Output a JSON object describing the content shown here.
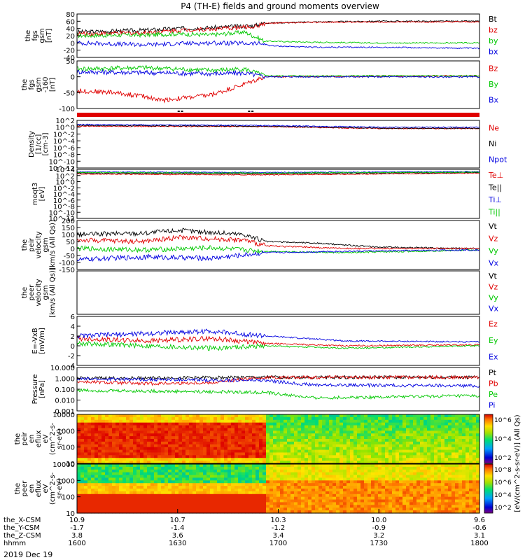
{
  "title": "P4 (TH-E) fields and ground moments overview",
  "date_label": "2019 Dec 19",
  "colors": {
    "black": "#000000",
    "red": "#e00000",
    "green": "#00c800",
    "blue": "#0000e0"
  },
  "chart_data": {
    "type": "line",
    "x_axis": {
      "row_labels": [
        "the_X-CSM",
        "the_Y-CSM",
        "the_Z-CSM",
        "hhmm"
      ],
      "ticks": [
        {
          "t": 0,
          "X": "10.9",
          "Y": "-1.7",
          "Z": "3.8",
          "hhmm": "1600"
        },
        {
          "t": 30,
          "X": "10.7",
          "Y": "-1.4",
          "Z": "3.6",
          "hhmm": "1630"
        },
        {
          "t": 60,
          "X": "10.3",
          "Y": "-1.2",
          "Z": "3.4",
          "hhmm": "1700"
        },
        {
          "t": 90,
          "X": "10.0",
          "Y": "-0.9",
          "Z": "3.2",
          "hhmm": "1730"
        },
        {
          "t": 120,
          "X": "9.6",
          "Y": "-0.6",
          "Z": "3.1",
          "hhmm": "1800"
        }
      ],
      "range_minutes": [
        0,
        120
      ]
    },
    "panels": [
      {
        "id": "fgs",
        "ylabel": [
          "the",
          "fgs",
          "gsm",
          "[nT]"
        ],
        "ylim": [
          -40,
          80
        ],
        "yticks": [
          "-40",
          "-20",
          "0",
          "20",
          "40",
          "60",
          "80"
        ],
        "series": [
          {
            "name": "Bt",
            "color": "black",
            "segments": [
              [
                0,
                30
              ],
              [
                20,
                35
              ],
              [
                30,
                40
              ],
              [
                40,
                42
              ],
              [
                53,
                48
              ],
              [
                56,
                55
              ],
              [
                70,
                58
              ],
              [
                90,
                60
              ],
              [
                120,
                60
              ]
            ]
          },
          {
            "name": "bz",
            "color": "red",
            "segments": [
              [
                0,
                25
              ],
              [
                20,
                28
              ],
              [
                30,
                35
              ],
              [
                40,
                38
              ],
              [
                53,
                45
              ],
              [
                56,
                54
              ],
              [
                70,
                57
              ],
              [
                90,
                58
              ],
              [
                120,
                58
              ]
            ]
          },
          {
            "name": "by",
            "color": "green",
            "segments": [
              [
                0,
                20
              ],
              [
                20,
                22
              ],
              [
                30,
                25
              ],
              [
                40,
                22
              ],
              [
                50,
                30
              ],
              [
                56,
                5
              ],
              [
                70,
                2
              ],
              [
                90,
                0
              ],
              [
                120,
                0
              ]
            ]
          },
          {
            "name": "bx",
            "color": "blue",
            "segments": [
              [
                0,
                0
              ],
              [
                20,
                -5
              ],
              [
                30,
                -2
              ],
              [
                40,
                0
              ],
              [
                55,
                -2
              ],
              [
                58,
                -8
              ],
              [
                70,
                -12
              ],
              [
                90,
                -12
              ],
              [
                120,
                -15
              ]
            ]
          }
        ]
      },
      {
        "id": "fgs-160",
        "ylabel": [
          "the",
          "fgs",
          "gsm",
          "-160",
          "[nT]"
        ],
        "ylim": [
          -120,
          55
        ],
        "yticks": [
          "-100",
          "-50",
          "0",
          "50"
        ],
        "series": [
          {
            "name": "Bz",
            "color": "red",
            "segments": [
              [
                0,
                -55
              ],
              [
                10,
                -60
              ],
              [
                20,
                -75
              ],
              [
                25,
                -90
              ],
              [
                40,
                -70
              ],
              [
                50,
                -30
              ],
              [
                56,
                -3
              ],
              [
                120,
                0
              ]
            ]
          },
          {
            "name": "By",
            "color": "green",
            "segments": [
              [
                0,
                25
              ],
              [
                20,
                30
              ],
              [
                30,
                25
              ],
              [
                40,
                20
              ],
              [
                50,
                25
              ],
              [
                56,
                0
              ],
              [
                120,
                0
              ]
            ]
          },
          {
            "name": "Bx",
            "color": "blue",
            "segments": [
              [
                0,
                15
              ],
              [
                20,
                12
              ],
              [
                30,
                10
              ],
              [
                40,
                8
              ],
              [
                50,
                10
              ],
              [
                56,
                -3
              ],
              [
                120,
                -4
              ]
            ]
          }
        ]
      },
      {
        "id": "density",
        "ylabel": [
          "Density",
          "[1/cc]",
          "[cm-3]"
        ],
        "scale": "log",
        "ylim_exp": [
          -12,
          2
        ],
        "yticks": [
          "10^2",
          "10^0",
          "10^-2",
          "10^-4",
          "10^-6",
          "10^-8",
          "10^-10",
          "10^-12"
        ],
        "series": [
          {
            "name": "Ne",
            "color": "red",
            "segments": [
              [
                0,
                0.3
              ],
              [
                56,
                0.2
              ],
              [
                90,
                -0.4
              ],
              [
                120,
                -0.4
              ]
            ]
          },
          {
            "name": "Ni",
            "color": "black",
            "segments": [
              [
                0,
                0.5
              ],
              [
                56,
                0.3
              ],
              [
                90,
                -0.3
              ],
              [
                120,
                -0.3
              ]
            ]
          },
          {
            "name": "Npot",
            "color": "blue",
            "segments": [
              [
                0,
                0.8
              ],
              [
                56,
                0.5
              ],
              [
                90,
                0
              ],
              [
                120,
                0
              ]
            ]
          }
        ]
      },
      {
        "id": "moqt3",
        "ylabel": [
          "moqt3",
          "[eV]"
        ],
        "scale": "log",
        "ylim_exp": [
          -12,
          4
        ],
        "yticks": [
          "10^4",
          "10^2",
          "10^0",
          "10^-2",
          "10^-4",
          "10^-6",
          "10^-8",
          "10^-10",
          "10^-12"
        ],
        "series": [
          {
            "name": "Te⊥",
            "color": "red",
            "segments": [
              [
                0,
                2.5
              ],
              [
                56,
                2.2
              ],
              [
                120,
                2.8
              ]
            ]
          },
          {
            "name": "Te||",
            "color": "black",
            "segments": [
              [
                0,
                2.8
              ],
              [
                56,
                2.6
              ],
              [
                120,
                3.0
              ]
            ]
          },
          {
            "name": "Ti⊥",
            "color": "blue",
            "segments": [
              [
                0,
                3.2
              ],
              [
                56,
                3.0
              ],
              [
                120,
                3.3
              ]
            ]
          },
          {
            "name": "Ti||",
            "color": "green",
            "segments": [
              [
                0,
                3.0
              ],
              [
                56,
                2.8
              ],
              [
                120,
                3.1
              ]
            ]
          }
        ]
      },
      {
        "id": "peir-velocity",
        "ylabel": [
          "the",
          "peir",
          "velocity",
          "gsm",
          "[km/s (All Qs)]"
        ],
        "ylim": [
          -150,
          200
        ],
        "yticks": [
          "-150",
          "-100",
          "-50",
          "0",
          "50",
          "100",
          "150",
          "200"
        ],
        "series": [
          {
            "name": "Vt",
            "color": "black",
            "segments": [
              [
                0,
                100
              ],
              [
                20,
                110
              ],
              [
                30,
                130
              ],
              [
                50,
                100
              ],
              [
                56,
                50
              ],
              [
                70,
                40
              ],
              [
                90,
                10
              ],
              [
                120,
                0
              ]
            ]
          },
          {
            "name": "Vz",
            "color": "red",
            "segments": [
              [
                0,
                60
              ],
              [
                20,
                50
              ],
              [
                30,
                80
              ],
              [
                50,
                60
              ],
              [
                56,
                20
              ],
              [
                80,
                0
              ],
              [
                120,
                0
              ]
            ]
          },
          {
            "name": "Vy",
            "color": "green",
            "segments": [
              [
                0,
                0
              ],
              [
                20,
                -10
              ],
              [
                40,
                5
              ],
              [
                56,
                -20
              ],
              [
                80,
                -30
              ],
              [
                120,
                -10
              ]
            ]
          },
          {
            "name": "Vx",
            "color": "blue",
            "segments": [
              [
                0,
                -80
              ],
              [
                20,
                -60
              ],
              [
                40,
                -70
              ],
              [
                56,
                -30
              ],
              [
                80,
                -20
              ],
              [
                120,
                -10
              ]
            ]
          }
        ]
      },
      {
        "id": "peer-velocity",
        "ylabel": [
          "the",
          "peer",
          "velocity",
          "gsm",
          "[km/s (All Qs)]"
        ],
        "ylim": [
          -1,
          1
        ],
        "yticks": [],
        "series": [
          {
            "name": "Vt",
            "color": "black",
            "segments": []
          },
          {
            "name": "Vz",
            "color": "red",
            "segments": []
          },
          {
            "name": "Vy",
            "color": "green",
            "segments": []
          },
          {
            "name": "Vx",
            "color": "blue",
            "segments": []
          }
        ]
      },
      {
        "id": "efield",
        "ylabel": [
          "E=-VxB",
          "[mV/m]"
        ],
        "ylim": [
          -4,
          6
        ],
        "yticks": [
          "-4",
          "-2",
          "0",
          "2",
          "4",
          "6"
        ],
        "series": [
          {
            "name": "Ez",
            "color": "red",
            "segments": [
              [
                0,
                1.5
              ],
              [
                20,
                1
              ],
              [
                40,
                1.5
              ],
              [
                56,
                0.5
              ],
              [
                80,
                0
              ],
              [
                120,
                0.2
              ]
            ]
          },
          {
            "name": "Ey",
            "color": "green",
            "segments": [
              [
                0,
                0.5
              ],
              [
                20,
                0
              ],
              [
                40,
                -0.5
              ],
              [
                56,
                0
              ],
              [
                80,
                -0.5
              ],
              [
                120,
                0
              ]
            ]
          },
          {
            "name": "Ex",
            "color": "blue",
            "segments": [
              [
                0,
                2
              ],
              [
                20,
                2.5
              ],
              [
                40,
                3
              ],
              [
                56,
                2
              ],
              [
                80,
                1
              ],
              [
                120,
                0.8
              ]
            ]
          }
        ]
      },
      {
        "id": "pressure",
        "ylabel": [
          "Pressure",
          "[nPa]"
        ],
        "scale": "log",
        "ylim_exp": [
          -3,
          1
        ],
        "yticks": [
          "10.000",
          "1.000",
          "0.100",
          "0.010",
          "0.001"
        ],
        "series": [
          {
            "name": "Pt",
            "color": "black",
            "segments": [
              [
                0,
                0
              ],
              [
                56,
                0.1
              ],
              [
                120,
                0.1
              ]
            ]
          },
          {
            "name": "Pb",
            "color": "red",
            "segments": [
              [
                0,
                -0.3
              ],
              [
                20,
                -0.5
              ],
              [
                40,
                -0.4
              ],
              [
                56,
                0.1
              ],
              [
                120,
                0.1
              ]
            ]
          },
          {
            "name": "Pe",
            "color": "green",
            "segments": [
              [
                0,
                -1.1
              ],
              [
                56,
                -1.3
              ],
              [
                70,
                -1.8
              ],
              [
                120,
                -1.6
              ]
            ]
          },
          {
            "name": "Pi",
            "color": "blue",
            "segments": [
              [
                0,
                -0.05
              ],
              [
                56,
                -0.2
              ],
              [
                70,
                -0.6
              ],
              [
                120,
                -0.7
              ]
            ]
          }
        ]
      },
      {
        "id": "peir-spec",
        "type": "heatmap",
        "ylabel": [
          "the",
          "peir",
          "en",
          "eflux",
          "eV",
          "(cm^2-s-",
          "sr-eV)"
        ],
        "scale": "log",
        "ylim_exp": [
          0.7,
          4.3
        ],
        "yticks": [
          "10000",
          "1000",
          "100",
          "10"
        ]
      },
      {
        "id": "peer-spec",
        "type": "heatmap",
        "ylabel": [
          "the",
          "peer",
          "en",
          "eflux",
          "eV",
          "(cm^2-s-",
          "sr-eV)"
        ],
        "scale": "log",
        "ylim_exp": [
          0.7,
          4.3
        ],
        "yticks": [
          "10000",
          "1000",
          "100",
          "10"
        ]
      }
    ],
    "colorbar": {
      "label": "[eV/(cm^2-s-sr-eV)] (All Qs)",
      "ticks_top": [
        "10^6",
        "10^4",
        "10^2"
      ],
      "ticks_bottom": [
        "10^8",
        "10^6",
        "10^4",
        "10^2"
      ]
    }
  }
}
